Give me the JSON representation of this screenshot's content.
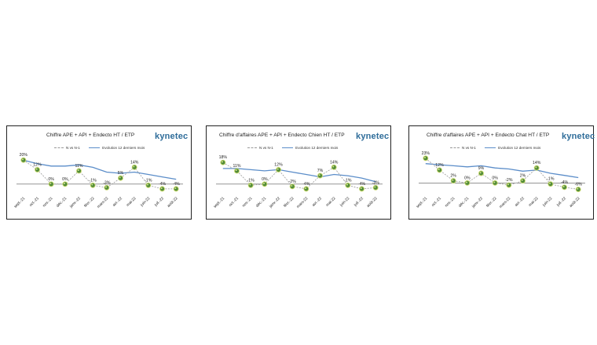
{
  "chart_data": [
    {
      "type": "line",
      "title": "Chiffre APE + API + Endecto HT / ETP",
      "logo": "kynetec",
      "categories": [
        "sept.-21",
        "oct.-21",
        "nov.-21",
        "déc.-21",
        "janv.-22",
        "févr.-22",
        "mars-22",
        "avr.-22",
        "mai-22",
        "juin-22",
        "juil.-22",
        "août-22"
      ],
      "series": [
        {
          "name": "N vs N-1",
          "values": [
            20,
            12,
            0,
            0,
            11,
            -1,
            -3,
            5,
            14,
            -1,
            -4,
            -4
          ],
          "labels": [
            "20%",
            "12%",
            "0%",
            "0%",
            "11%",
            "-1%",
            "-3%",
            "5%",
            "14%",
            "-1%",
            "-4%",
            "-4%"
          ]
        },
        {
          "name": "Evolution 12 derniers mois",
          "values": [
            20,
            17,
            15,
            15,
            16,
            14,
            10,
            9,
            10,
            8,
            6,
            4
          ]
        }
      ],
      "ylim": [
        -8,
        26
      ]
    },
    {
      "type": "line",
      "title": "Chiffre d'affaires APE + API + Endecto  Chien HT / ETP",
      "logo": "kynetec",
      "categories": [
        "sept.-21",
        "oct.-21",
        "nov.-21",
        "déc.-21",
        "janv.-22",
        "févr.-22",
        "mars-22",
        "avr.-22",
        "mai-22",
        "juin-22",
        "juil.-22",
        "août-22"
      ],
      "series": [
        {
          "name": "N vs N-1",
          "values": [
            18,
            11,
            -1,
            0,
            12,
            -2,
            -4,
            7,
            14,
            -1,
            -4,
            -3
          ],
          "labels": [
            "18%",
            "11%",
            "-1%",
            "0%",
            "12%",
            "-2%",
            "-4%",
            "7%",
            "14%",
            "-1%",
            "-4%",
            "-3%"
          ]
        },
        {
          "name": "Evolution 12 derniers mois",
          "values": [
            13,
            13,
            12,
            11,
            12,
            10,
            8,
            6,
            8,
            7,
            5,
            2
          ]
        }
      ],
      "ylim": [
        -8,
        26
      ]
    },
    {
      "type": "line",
      "title": "Chiffre d'affaires APE + API + Endecto  Chat HT / ETP",
      "logo": "kynetec",
      "categories": [
        "sept.-21",
        "oct.-21",
        "nov.-21",
        "déc.-21",
        "janv.-22",
        "févr.-22",
        "mars-22",
        "avr.-22",
        "mai-22",
        "juin-22",
        "juil.-22",
        "août-22"
      ],
      "series": [
        {
          "name": "N vs N-1",
          "values": [
            23,
            12,
            2,
            0,
            9,
            0,
            -2,
            2,
            14,
            -1,
            -4,
            -6
          ],
          "labels": [
            "23%",
            "12%",
            "2%",
            "0%",
            "9%",
            "0%",
            "-2%",
            "2%",
            "14%",
            "-1%",
            "-4%",
            "-6%"
          ]
        },
        {
          "name": "Evolution 12 derniers mois",
          "values": [
            18,
            17,
            16,
            15,
            16,
            14,
            13,
            11,
            12,
            9,
            7,
            5
          ]
        }
      ],
      "ylim": [
        -10,
        28
      ]
    }
  ]
}
